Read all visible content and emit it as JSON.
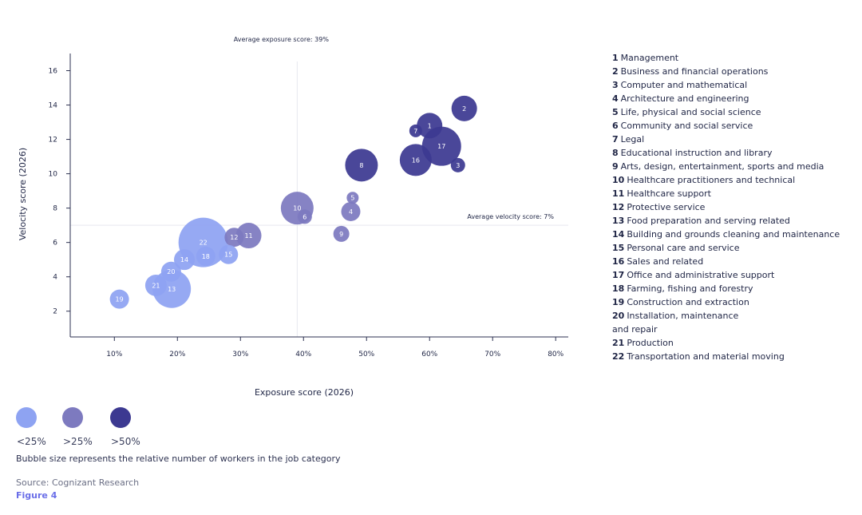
{
  "chart_data": {
    "type": "scatter",
    "subtype": "bubble",
    "xlabel": "Exposure score (2026)",
    "ylabel": "Velocity score (2026)",
    "xlim": [
      3,
      82
    ],
    "ylim": [
      0.5,
      17
    ],
    "x_ticks": [
      10,
      20,
      30,
      40,
      50,
      60,
      70,
      80
    ],
    "x_tick_labels": [
      "10%",
      "20%",
      "30%",
      "40%",
      "50%",
      "60%",
      "70%",
      "80%"
    ],
    "y_ticks": [
      2,
      4,
      6,
      8,
      10,
      12,
      14,
      16
    ],
    "y_tick_labels": [
      "2",
      "4",
      "6",
      "8",
      "10",
      "12",
      "14",
      "16"
    ],
    "reference_lines": {
      "average_exposure": {
        "value": 39,
        "label": "Average exposure score: 39%"
      },
      "average_velocity": {
        "value": 7,
        "label": "Average velocity score: 7%"
      }
    },
    "points": [
      {
        "id": 1,
        "label": "1",
        "x": 60.0,
        "y": 12.8,
        "size": 1.6,
        "group": ">50%"
      },
      {
        "id": 2,
        "label": "2",
        "x": 65.5,
        "y": 13.8,
        "size": 1.6,
        "group": ">50%"
      },
      {
        "id": 3,
        "label": "3",
        "x": 64.5,
        "y": 10.5,
        "size": 0.9,
        "group": ">50%"
      },
      {
        "id": 4,
        "label": "4",
        "x": 47.5,
        "y": 7.8,
        "size": 1.2,
        "group": ">25%"
      },
      {
        "id": 5,
        "label": "5",
        "x": 47.8,
        "y": 8.6,
        "size": 0.75,
        "group": ">25%"
      },
      {
        "id": 6,
        "label": "6",
        "x": 40.2,
        "y": 7.5,
        "size": 0.9,
        "group": ">25%"
      },
      {
        "id": 7,
        "label": "7",
        "x": 57.8,
        "y": 12.5,
        "size": 0.8,
        "group": ">50%"
      },
      {
        "id": 8,
        "label": "8",
        "x": 49.2,
        "y": 10.5,
        "size": 2.05,
        "group": ">50%"
      },
      {
        "id": 9,
        "label": "9",
        "x": 46.0,
        "y": 6.5,
        "size": 1.0,
        "group": ">25%"
      },
      {
        "id": 10,
        "label": "10",
        "x": 39.0,
        "y": 8.0,
        "size": 2.05,
        "group": ">25%"
      },
      {
        "id": 11,
        "label": "11",
        "x": 31.3,
        "y": 6.4,
        "size": 1.6,
        "group": ">25%"
      },
      {
        "id": 12,
        "label": "12",
        "x": 29.0,
        "y": 6.3,
        "size": 1.2,
        "group": ">25%"
      },
      {
        "id": 13,
        "label": "13",
        "x": 19.1,
        "y": 3.3,
        "size": 2.4,
        "group": "<25%"
      },
      {
        "id": 14,
        "label": "14",
        "x": 21.1,
        "y": 5.0,
        "size": 1.3,
        "group": "<25%"
      },
      {
        "id": 15,
        "label": "15",
        "x": 28.1,
        "y": 5.3,
        "size": 1.2,
        "group": "<25%"
      },
      {
        "id": 16,
        "label": "16",
        "x": 57.8,
        "y": 10.8,
        "size": 2.0,
        "group": ">50%"
      },
      {
        "id": 17,
        "label": "17",
        "x": 61.9,
        "y": 11.6,
        "size": 2.45,
        "group": ">50%"
      },
      {
        "id": 18,
        "label": "18",
        "x": 24.5,
        "y": 5.2,
        "size": 1.2,
        "group": "<25%"
      },
      {
        "id": 19,
        "label": "19",
        "x": 10.8,
        "y": 2.7,
        "size": 1.2,
        "group": "<25%"
      },
      {
        "id": 20,
        "label": "20",
        "x": 19.0,
        "y": 4.3,
        "size": 1.25,
        "group": "<25%"
      },
      {
        "id": 21,
        "label": "21",
        "x": 16.6,
        "y": 3.5,
        "size": 1.35,
        "group": "<25%"
      },
      {
        "id": 22,
        "label": "22",
        "x": 24.1,
        "y": 6.0,
        "size": 3.1,
        "group": "<25%"
      }
    ],
    "groups": [
      {
        "name": "<25%",
        "label": "<25%",
        "color": "#8ea3f2"
      },
      {
        "name": ">25%",
        "label": ">25%",
        "color": "#7d7abf"
      },
      {
        "name": ">50%",
        "label": ">50%",
        "color": "#3c3991"
      }
    ],
    "categories": [
      {
        "num": "1",
        "name": "Management"
      },
      {
        "num": "2",
        "name": "Business and financial operations"
      },
      {
        "num": "3",
        "name": "Computer and mathematical"
      },
      {
        "num": "4",
        "name": "Architecture and engineering"
      },
      {
        "num": "5",
        "name": "Life, physical and social science"
      },
      {
        "num": "6",
        "name": "Community and social service"
      },
      {
        "num": "7",
        "name": "Legal"
      },
      {
        "num": "8",
        "name": "Educational instruction and library"
      },
      {
        "num": "9",
        "name": "Arts, design, entertainment, sports and media"
      },
      {
        "num": "10",
        "name": "Healthcare practitioners and technical"
      },
      {
        "num": "11",
        "name": "Healthcare support"
      },
      {
        "num": "12",
        "name": "Protective service"
      },
      {
        "num": "13",
        "name": "Food preparation and serving related"
      },
      {
        "num": "14",
        "name": "Building and grounds cleaning and maintenance"
      },
      {
        "num": "15",
        "name": "Personal care and service"
      },
      {
        "num": "16",
        "name": "Sales and related"
      },
      {
        "num": "17",
        "name": "Office and administrative support"
      },
      {
        "num": "18",
        "name": "Farming, fishing and forestry"
      },
      {
        "num": "19",
        "name": "Construction and extraction"
      },
      {
        "num": "20",
        "name": "Installation, maintenance and repair"
      },
      {
        "num": "21",
        "name": "Production"
      },
      {
        "num": "22",
        "name": "Transportation and material moving"
      }
    ]
  },
  "footnote": "Bubble size represents the relative number of workers in the job category",
  "source": "Source: Cognizant Research",
  "figure_label": "Figure 4",
  "colors": {
    "axis": "#2c3150",
    "reference_line": "#e6e8ef",
    "figure_accent": "#6a6ee8"
  }
}
